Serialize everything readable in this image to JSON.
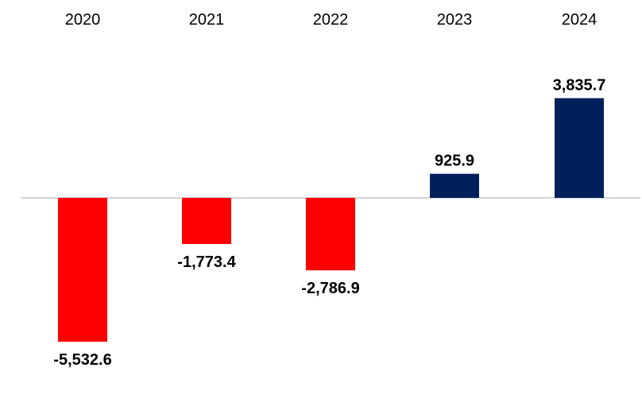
{
  "chart_data": {
    "type": "bar",
    "title": "",
    "xlabel": "",
    "ylabel": "",
    "categories": [
      "2020",
      "2021",
      "2022",
      "2023",
      "2024"
    ],
    "values": [
      -5532.6,
      -1773.4,
      -2786.9,
      925.9,
      3835.7
    ],
    "value_labels": [
      "-5,532.6",
      "-1,773.4",
      "-2,786.9",
      "925.9",
      "3,835.7"
    ],
    "ylim": [
      -6500,
      4800
    ],
    "grid": false,
    "legend": "none",
    "category_axis_position": "top",
    "colors": {
      "negative": "#ff0000",
      "positive": "#00205b",
      "baseline": "#a6a6a6"
    }
  }
}
